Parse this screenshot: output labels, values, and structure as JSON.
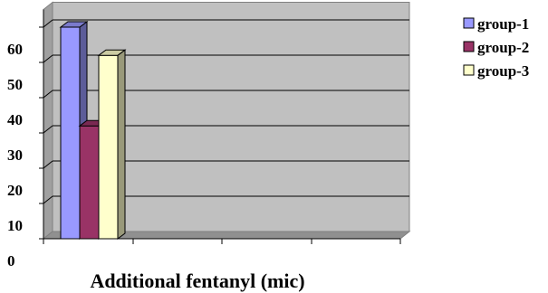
{
  "chart_data": {
    "type": "bar",
    "style": "3d-clustered",
    "categories": [
      "Additional fentanyl (mic)"
    ],
    "series": [
      {
        "name": "group-1",
        "values": [
          60
        ],
        "color": "#9999ff"
      },
      {
        "name": "group-2",
        "values": [
          32
        ],
        "color": "#993366"
      },
      {
        "name": "group-3",
        "values": [
          52
        ],
        "color": "#ffffcc"
      }
    ],
    "title": "",
    "xlabel": "Additional fentanyl (mic)",
    "ylabel": "",
    "ylim": [
      0,
      60
    ],
    "yticks": [
      "0",
      "10",
      "20",
      "30",
      "40",
      "50",
      "60"
    ],
    "grid": true,
    "legend": "top-right",
    "plot_background": "#c0c0c0"
  }
}
